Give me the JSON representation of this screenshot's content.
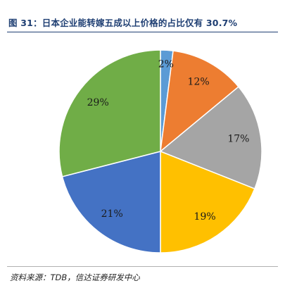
{
  "figure": {
    "title": "图 31：日本企业能转嫁五成以上价格的占比仅有 30.7%",
    "source": "资料来源：TDB，信达证券研发中心"
  },
  "chart_data": {
    "type": "pie",
    "title": "",
    "slices": [
      {
        "label": "2%",
        "value": 2,
        "color": "#5B9BD5"
      },
      {
        "label": "12%",
        "value": 12,
        "color": "#ED7D31"
      },
      {
        "label": "17%",
        "value": 17,
        "color": "#A5A5A5"
      },
      {
        "label": "19%",
        "value": 19,
        "color": "#FFC000"
      },
      {
        "label": "21%",
        "value": 21,
        "color": "#4472C4"
      },
      {
        "label": "29%",
        "value": 29,
        "color": "#70AD47"
      }
    ],
    "start": "12 o'clock",
    "direction": "clockwise",
    "legend": "none",
    "slice_border_color": "#FFFFFF"
  }
}
